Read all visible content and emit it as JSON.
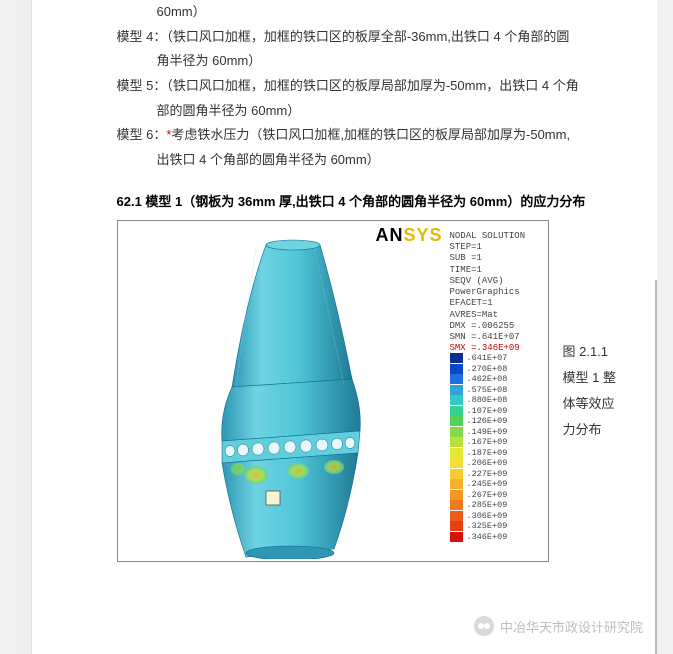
{
  "top_cont": "60mm）",
  "models": [
    {
      "label": "模型 4：",
      "star": false,
      "line1": "（铁口风口加框，加框的铁口区的板厚全部-36mm,出铁口 4 个角部的圆",
      "line2": "角半径为 60mm）"
    },
    {
      "label": "模型 5：",
      "star": false,
      "line1": "（铁口风口加框，加框的铁口区的板厚局部加厚为-50mm，出铁口 4 个角",
      "line2": "部的圆角半径为 60mm）"
    },
    {
      "label": "模型 6：",
      "star": true,
      "line1": "考虑铁水压力（铁口风口加框,加框的铁口区的板厚局部加厚为-50mm,",
      "line2": "出铁口 4 个角部的圆角半径为 60mm）"
    }
  ],
  "section_title": "62.1 模型 1（钢板为 36mm 厚,出铁口 4 个角部的圆角半径为 60mm）的应力分布",
  "ansys": {
    "logo_an": "AN",
    "logo_sys": "SYS",
    "info_lines": [
      "NODAL SOLUTION",
      "STEP=1",
      "SUB =1",
      "TIME=1",
      "SEQV     (AVG)",
      "PowerGraphics",
      "EFACET=1",
      "AVRES=Mat",
      "DMX =.006255",
      "SMN =.641E+07"
    ],
    "info_smx": "SMX =.346E+09"
  },
  "legend": [
    {
      "color": "#0b2f8f",
      "label": ".641E+07"
    },
    {
      "color": "#0b49c9",
      "label": ".270E+08"
    },
    {
      "color": "#1e6fe0",
      "label": ".462E+08"
    },
    {
      "color": "#2fa4d6",
      "label": ".575E+08"
    },
    {
      "color": "#35c8c2",
      "label": ".880E+08"
    },
    {
      "color": "#34d191",
      "label": ".107E+09"
    },
    {
      "color": "#4fd15a",
      "label": ".126E+09"
    },
    {
      "color": "#84d94a",
      "label": ".149E+09"
    },
    {
      "color": "#b7e23e",
      "label": ".167E+09"
    },
    {
      "color": "#e6e838",
      "label": ".187E+09"
    },
    {
      "color": "#f4e033",
      "label": ".206E+09"
    },
    {
      "color": "#f7cc2e",
      "label": ".227E+09"
    },
    {
      "color": "#f6b129",
      "label": ".245E+09"
    },
    {
      "color": "#f29724",
      "label": ".267E+09"
    },
    {
      "color": "#ee7a1f",
      "label": ".285E+09"
    },
    {
      "color": "#e95d19",
      "label": ".306E+09"
    },
    {
      "color": "#e33f13",
      "label": ".325E+09"
    },
    {
      "color": "#d4140c",
      "label": ".346E+09"
    }
  ],
  "caption": [
    "图 2.1.1",
    "模型 1 整",
    "体等效应",
    "力分布"
  ],
  "watermark": "中冶华天市政设计研究院",
  "model_render": {
    "body_fill": "#4fc6d8",
    "body_stroke": "#0d6a88",
    "hole_fill": "#e8f7fb",
    "hot1": "#f6b129",
    "hot2": "#84d94a",
    "square": "#f7f3d2"
  }
}
